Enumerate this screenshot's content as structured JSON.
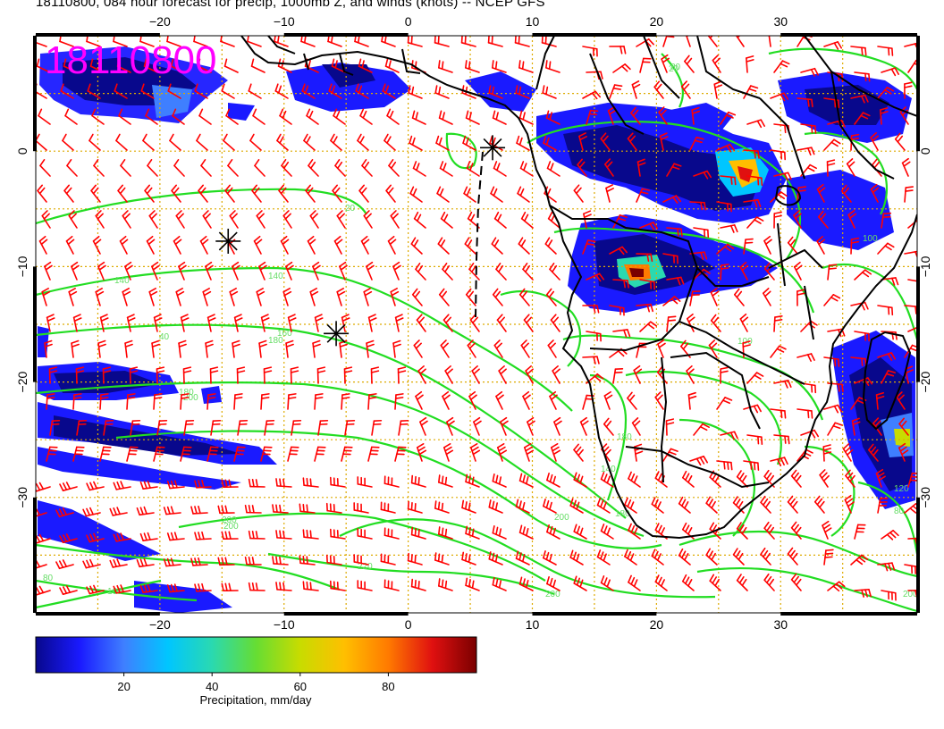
{
  "header": {
    "title": "18110800, 084 hour forecast for precip, 1000mb Z, and winds (knots) -- NCEP GFS",
    "stamp": "18110800"
  },
  "map": {
    "lon_range": [
      -30,
      41
    ],
    "lat_range": [
      -40,
      10
    ],
    "lon_ticks": [
      "−20",
      "−10",
      "0",
      "10",
      "20",
      "30"
    ],
    "lat_ticks": [
      "0",
      "−10",
      "−20",
      "−30"
    ],
    "lon_tick_values": [
      -20,
      -10,
      0,
      10,
      20,
      30
    ],
    "lat_tick_values": [
      0,
      -10,
      -20,
      -30
    ],
    "contour_color": "#22dd22",
    "wind_barb_color": "#ff0000",
    "grid_color": "#ddaa00",
    "coast_color": "#000000",
    "contour_labels": [
      "140",
      "140",
      "160",
      "180",
      "220",
      "200",
      "200",
      "160",
      "40",
      "180",
      "140",
      "180",
      "200",
      "200",
      "100",
      "100",
      "80",
      "20",
      "180",
      "120",
      "80",
      "80",
      "200",
      "200",
      "20"
    ],
    "markers": [
      {
        "name": "asterisk-marker",
        "lon": -14.5,
        "lat": -7.8
      },
      {
        "name": "asterisk-marker",
        "lon": -5.8,
        "lat": -15.8
      },
      {
        "name": "asterisk-marker",
        "lon": 6.8,
        "lat": 0.3
      }
    ]
  },
  "colorbar": {
    "ticks": [
      "20",
      "40",
      "60",
      "80"
    ],
    "tick_values": [
      20,
      40,
      60,
      80
    ],
    "range": [
      0,
      100
    ],
    "label": "Precipitation, mm/day",
    "colors": [
      "#08088c",
      "#1a1aff",
      "#3f7fff",
      "#00c6ff",
      "#2ad9b0",
      "#66dd33",
      "#c8dc00",
      "#ffbf00",
      "#ff7a00",
      "#e01010",
      "#7a0000"
    ]
  }
}
